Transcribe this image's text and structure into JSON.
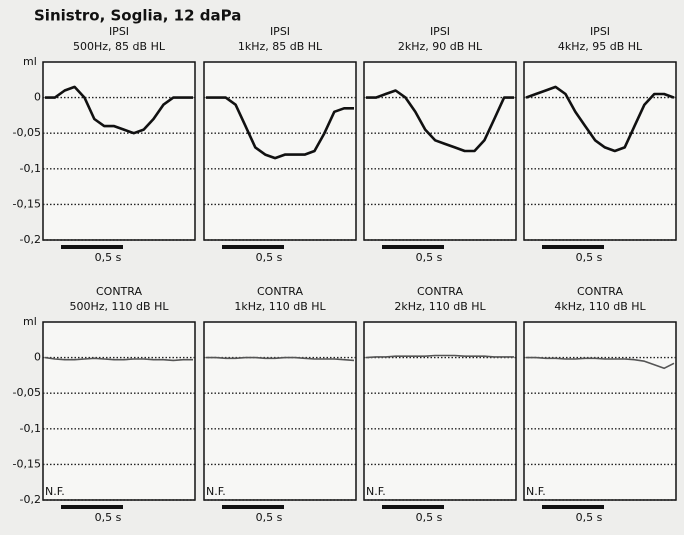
{
  "title": "Sinistro, Soglia, 12 daPa",
  "chart_data": [
    {
      "type": "line",
      "title": "IPSI",
      "subtitle": "500Hz, 85 dB HL",
      "ylabel": "ml",
      "ylim": [
        -0.2,
        0.05
      ],
      "yticks": [
        0,
        {
          "value": -0.05,
          "label": "-0,05"
        },
        {
          "value": -0.1,
          "label": "-0,1"
        },
        {
          "value": -0.15,
          "label": "-0,15"
        },
        {
          "value": -0.2,
          "label": "-0,2"
        }
      ],
      "grid": true,
      "color": "#111111",
      "annotation": "0,5 s",
      "values": [
        0,
        0,
        0.01,
        0.015,
        0,
        -0.03,
        -0.04,
        -0.04,
        -0.045,
        -0.05,
        -0.045,
        -0.03,
        -0.01,
        0,
        0,
        0
      ]
    },
    {
      "type": "line",
      "title": "IPSI",
      "subtitle": "1kHz, 85 dB HL",
      "color": "#111111",
      "annotation": "0,5 s",
      "values": [
        0,
        0,
        0,
        -0.01,
        -0.04,
        -0.07,
        -0.08,
        -0.085,
        -0.08,
        -0.08,
        -0.08,
        -0.075,
        -0.05,
        -0.02,
        -0.015,
        -0.015
      ]
    },
    {
      "type": "line",
      "title": "IPSI",
      "subtitle": "2kHz, 90 dB HL",
      "color": "#111111",
      "annotation": "0,5 s",
      "values": [
        0,
        0,
        0.005,
        0.01,
        0,
        -0.02,
        -0.045,
        -0.06,
        -0.065,
        -0.07,
        -0.075,
        -0.075,
        -0.06,
        -0.03,
        0,
        0
      ]
    },
    {
      "type": "line",
      "title": "IPSI",
      "subtitle": "4kHz, 95 dB HL",
      "color": "#111111",
      "annotation": "0,5 s",
      "values": [
        0,
        0.005,
        0.01,
        0.015,
        0.005,
        -0.02,
        -0.04,
        -0.06,
        -0.07,
        -0.075,
        -0.07,
        -0.04,
        -0.01,
        0.005,
        0.005,
        0
      ]
    },
    {
      "type": "line",
      "title": "CONTRA",
      "subtitle": "500Hz, 110 dB HL",
      "ylabel": "ml",
      "ylim": [
        -0.2,
        0.05
      ],
      "yticks": [
        0,
        {
          "value": -0.05,
          "label": "-0,05"
        },
        {
          "value": -0.1,
          "label": "-0,1"
        },
        {
          "value": -0.15,
          "label": "-0,15"
        },
        {
          "value": -0.2,
          "label": "-0,2"
        }
      ],
      "grid": true,
      "color": "#555555",
      "annotation": "0,5 s",
      "note": "N.F.",
      "values": [
        0,
        -0.002,
        -0.003,
        -0.003,
        -0.002,
        -0.001,
        -0.002,
        -0.003,
        -0.003,
        -0.002,
        -0.002,
        -0.003,
        -0.003,
        -0.004,
        -0.003,
        -0.003
      ]
    },
    {
      "type": "line",
      "title": "CONTRA",
      "subtitle": "1kHz, 110 dB HL",
      "color": "#555555",
      "annotation": "0,5 s",
      "note": "N.F.",
      "values": [
        0,
        0,
        -0.001,
        -0.001,
        0,
        0,
        -0.001,
        -0.001,
        0,
        0,
        -0.001,
        -0.002,
        -0.002,
        -0.002,
        -0.003,
        -0.004
      ]
    },
    {
      "type": "line",
      "title": "CONTRA",
      "subtitle": "2kHz, 110 dB HL",
      "color": "#555555",
      "annotation": "0,5 s",
      "note": "N.F.",
      "values": [
        0,
        0.001,
        0.001,
        0.002,
        0.002,
        0.002,
        0.002,
        0.003,
        0.003,
        0.003,
        0.002,
        0.002,
        0.002,
        0.001,
        0.001,
        0.001
      ]
    },
    {
      "type": "line",
      "title": "CONTRA",
      "subtitle": "4kHz, 110 dB HL",
      "color": "#555555",
      "annotation": "0,5 s",
      "note": "N.F.",
      "values": [
        0,
        0,
        -0.001,
        -0.001,
        -0.002,
        -0.002,
        -0.001,
        -0.001,
        -0.002,
        -0.002,
        -0.002,
        -0.003,
        -0.005,
        -0.01,
        -0.015,
        -0.008
      ]
    }
  ]
}
